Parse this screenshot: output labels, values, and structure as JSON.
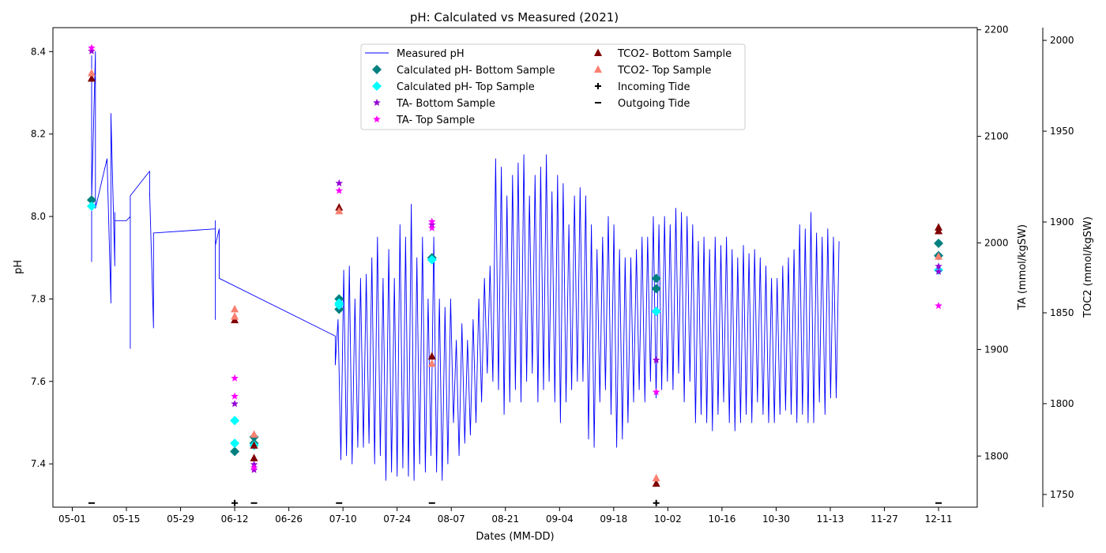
{
  "chart_data": {
    "type": "line",
    "title": "pH: Calculated vs Measured (2021)",
    "xlabel": "Dates (MM-DD)",
    "ylabel": "pH",
    "y2label": "TA (mmol/kgSW)",
    "y3label": "TOC2 (mmol/kgSW)",
    "x_axis_type": "date",
    "xlim": [
      "2021-04-26",
      "2021-12-21"
    ],
    "ylim": [
      7.295,
      8.458
    ],
    "y2lim": [
      1752,
      2202
    ],
    "y3lim": [
      1743,
      2007
    ],
    "x_ticks": [
      "2021-05-01",
      "2021-05-15",
      "2021-05-29",
      "2021-06-12",
      "2021-06-26",
      "2021-07-10",
      "2021-07-24",
      "2021-08-07",
      "2021-08-21",
      "2021-09-04",
      "2021-09-18",
      "2021-10-02",
      "2021-10-16",
      "2021-10-30",
      "2021-11-13",
      "2021-11-27",
      "2021-12-11"
    ],
    "x_tick_labels": [
      "05-01",
      "05-15",
      "05-29",
      "06-12",
      "06-26",
      "07-10",
      "07-24",
      "08-07",
      "08-21",
      "09-04",
      "09-18",
      "10-02",
      "10-16",
      "10-30",
      "11-13",
      "11-27",
      "12-11"
    ],
    "y_ticks": [
      "7.4",
      "7.6",
      "7.8",
      "8.0",
      "8.2",
      "8.4"
    ],
    "y2_ticks": [
      "1800",
      "1900",
      "2000",
      "2100",
      "2200"
    ],
    "y3_ticks": [
      "1750",
      "1800",
      "1850",
      "1900",
      "1950",
      "2000"
    ],
    "grid": false,
    "legend_position": "top-center",
    "legend": [
      {
        "label": "Measured pH",
        "marker": "line",
        "color": "#0000ff"
      },
      {
        "label": "Calculated pH- Bottom Sample",
        "marker": "diamond",
        "color": "#008080"
      },
      {
        "label": "Calculated pH- Top Sample",
        "marker": "diamond",
        "color": "#00ffff"
      },
      {
        "label": "TA- Bottom Sample",
        "marker": "star",
        "color": "#9400d3"
      },
      {
        "label": "TA- Top Sample",
        "marker": "star",
        "color": "#ff00ff"
      },
      {
        "label": "TCO2- Bottom Sample",
        "marker": "triangle",
        "color": "#800000"
      },
      {
        "label": "TCO2- Top Sample",
        "marker": "triangle",
        "color": "#fa8072"
      },
      {
        "label": "Incoming Tide",
        "marker": "plus",
        "color": "#000000"
      },
      {
        "label": "Outgoing Tide",
        "marker": "minus",
        "color": "#000000"
      }
    ],
    "measured_ph": {
      "sparse": [
        [
          "2021-05-06",
          7.89
        ],
        [
          "2021-05-06",
          8.02
        ],
        [
          "2021-05-06",
          8.28
        ],
        [
          "2021-05-06",
          8.39
        ],
        [
          "2021-05-06",
          8.05
        ],
        [
          "2021-05-06",
          8.0
        ],
        [
          "2021-05-06",
          8.04
        ],
        [
          "2021-05-07",
          8.4
        ],
        [
          "2021-05-07",
          8.38
        ],
        [
          "2021-05-07",
          8.07
        ],
        [
          "2021-05-07",
          8.02
        ],
        [
          "2021-05-10",
          8.14
        ],
        [
          "2021-05-11",
          7.79
        ],
        [
          "2021-05-11",
          8.11
        ],
        [
          "2021-05-11",
          8.17
        ],
        [
          "2021-05-11",
          7.96
        ],
        [
          "2021-05-11",
          8.25
        ],
        [
          "2021-05-12",
          7.88
        ],
        [
          "2021-05-12",
          8.01
        ],
        [
          "2021-05-12",
          7.99
        ],
        [
          "2021-05-15",
          7.99
        ],
        [
          "2021-05-16",
          8.0
        ],
        [
          "2021-05-16",
          7.68
        ],
        [
          "2021-05-16",
          8.0
        ],
        [
          "2021-05-16",
          8.05
        ],
        [
          "2021-05-21",
          8.11
        ],
        [
          "2021-05-21",
          8.05
        ],
        [
          "2021-05-21",
          8.06
        ],
        [
          "2021-05-22",
          7.73
        ],
        [
          "2021-05-22",
          7.96
        ],
        [
          "2021-06-07",
          7.97
        ],
        [
          "2021-06-07",
          7.75
        ],
        [
          "2021-06-07",
          7.99
        ],
        [
          "2021-06-07",
          7.93
        ],
        [
          "2021-06-08",
          7.97
        ],
        [
          "2021-06-08",
          7.86
        ],
        [
          "2021-06-08",
          7.88
        ],
        [
          "2021-06-08",
          7.85
        ],
        [
          "2021-07-08",
          7.71
        ]
      ],
      "dense_start": "2021-07-08",
      "dense_end": "2021-11-16",
      "dense_peaks": [
        7.75,
        7.87,
        7.88,
        7.8,
        7.85,
        7.86,
        7.9,
        7.95,
        7.85,
        7.92,
        7.85,
        7.98,
        7.95,
        8.03,
        7.9,
        7.95,
        7.8,
        7.95,
        7.8,
        7.78,
        7.8,
        7.7,
        7.74,
        7.7,
        7.75,
        7.8,
        7.85,
        7.88,
        8.14,
        8.12,
        8.05,
        8.1,
        8.13,
        8.15,
        8.05,
        8.1,
        8.12,
        8.15,
        8.06,
        8.1,
        8.08,
        7.98,
        8.05,
        8.07,
        8.05,
        7.98,
        7.92,
        7.95,
        8.0,
        7.98,
        7.92,
        7.9,
        7.9,
        7.92,
        7.95,
        7.95,
        8.0,
        7.98,
        8.0,
        7.98,
        8.02,
        8.01,
        8.0,
        7.98,
        7.94,
        7.95,
        7.92,
        7.95,
        7.93,
        7.95,
        7.92,
        7.9,
        7.93,
        7.91,
        7.92,
        7.9,
        7.88,
        7.85,
        7.85,
        7.88,
        7.9,
        7.92,
        7.98,
        7.97,
        8.01,
        7.96,
        7.95,
        7.97,
        7.95,
        7.94
      ],
      "dense_troughs": [
        7.64,
        7.41,
        7.42,
        7.4,
        7.44,
        7.44,
        7.45,
        7.4,
        7.42,
        7.36,
        7.38,
        7.37,
        7.39,
        7.37,
        7.36,
        7.4,
        7.38,
        7.42,
        7.38,
        7.36,
        7.4,
        7.5,
        7.42,
        7.45,
        7.47,
        7.5,
        7.55,
        7.62,
        7.6,
        7.58,
        7.52,
        7.55,
        7.58,
        7.55,
        7.6,
        7.62,
        7.55,
        7.58,
        7.6,
        7.55,
        7.5,
        7.55,
        7.58,
        7.6,
        7.6,
        7.46,
        7.44,
        7.55,
        7.58,
        7.52,
        7.44,
        7.46,
        7.5,
        7.55,
        7.58,
        7.55,
        7.6,
        7.56,
        7.58,
        7.6,
        7.58,
        7.62,
        7.55,
        7.6,
        7.5,
        7.52,
        7.5,
        7.48,
        7.52,
        7.55,
        7.5,
        7.48,
        7.5,
        7.52,
        7.5,
        7.55,
        7.52,
        7.5,
        7.5,
        7.52,
        7.53,
        7.52,
        7.5,
        7.52,
        7.5,
        7.5,
        7.55,
        7.52,
        7.56,
        7.56
      ]
    },
    "series": [
      {
        "name": "Calculated pH- Bottom Sample",
        "marker": "diamond",
        "color": "#008080",
        "axis": "pH",
        "points": [
          [
            "2021-05-06",
            8.04
          ],
          [
            "2021-06-12",
            7.43
          ],
          [
            "2021-06-17",
            7.465
          ],
          [
            "2021-06-17",
            7.45
          ],
          [
            "2021-07-09",
            7.8
          ],
          [
            "2021-07-09",
            7.775
          ],
          [
            "2021-08-02",
            7.9
          ],
          [
            "2021-09-29",
            7.85
          ],
          [
            "2021-09-29",
            7.825
          ],
          [
            "2021-12-11",
            7.935
          ],
          [
            "2021-12-11",
            7.905
          ]
        ]
      },
      {
        "name": "Calculated pH- Top Sample",
        "marker": "diamond",
        "color": "#00ffff",
        "axis": "pH",
        "points": [
          [
            "2021-05-06",
            8.025
          ],
          [
            "2021-06-12",
            7.505
          ],
          [
            "2021-06-12",
            7.45
          ],
          [
            "2021-06-17",
            7.445
          ],
          [
            "2021-07-09",
            7.79
          ],
          [
            "2021-07-09",
            7.785
          ],
          [
            "2021-08-02",
            7.895
          ],
          [
            "2021-09-29",
            7.77
          ],
          [
            "2021-12-11",
            7.87
          ]
        ]
      },
      {
        "name": "TA- Bottom Sample",
        "marker": "star",
        "color": "#9400d3",
        "axis": "TA",
        "points": [
          [
            "2021-05-06",
            2180
          ],
          [
            "2021-06-12",
            1849
          ],
          [
            "2021-06-17",
            1792
          ],
          [
            "2021-06-17",
            1787
          ],
          [
            "2021-07-09",
            2056
          ],
          [
            "2021-08-02",
            2017
          ],
          [
            "2021-09-29",
            1890
          ],
          [
            "2021-12-11",
            1978
          ],
          [
            "2021-12-11",
            1973
          ]
        ]
      },
      {
        "name": "TA- Top Sample",
        "marker": "star",
        "color": "#ff00ff",
        "axis": "TA",
        "points": [
          [
            "2021-05-06",
            2183
          ],
          [
            "2021-06-12",
            1873
          ],
          [
            "2021-06-12",
            1856
          ],
          [
            "2021-06-17",
            1789
          ],
          [
            "2021-07-09",
            2049
          ],
          [
            "2021-08-02",
            2020
          ],
          [
            "2021-08-02",
            2014
          ],
          [
            "2021-09-29",
            1860
          ],
          [
            "2021-12-11",
            1941
          ]
        ]
      },
      {
        "name": "TCO2- Bottom Sample",
        "marker": "triangle",
        "color": "#800000",
        "axis": "TOC2",
        "points": [
          [
            "2021-05-06",
            1979
          ],
          [
            "2021-06-12",
            1846
          ],
          [
            "2021-06-17",
            1777
          ],
          [
            "2021-06-17",
            1770
          ],
          [
            "2021-07-09",
            1908
          ],
          [
            "2021-08-02",
            1826
          ],
          [
            "2021-09-29",
            1756
          ],
          [
            "2021-12-11",
            1897
          ],
          [
            "2021-12-11",
            1895
          ]
        ]
      },
      {
        "name": "TCO2- Top Sample",
        "marker": "triangle",
        "color": "#fa8072",
        "axis": "TOC2",
        "points": [
          [
            "2021-05-06",
            1982
          ],
          [
            "2021-06-12",
            1852
          ],
          [
            "2021-06-12",
            1848
          ],
          [
            "2021-06-17",
            1783
          ],
          [
            "2021-07-09",
            1906
          ],
          [
            "2021-08-02",
            1822
          ],
          [
            "2021-09-29",
            1759
          ],
          [
            "2021-12-11",
            1881
          ]
        ]
      },
      {
        "name": "Incoming Tide",
        "marker": "plus",
        "color": "#000000",
        "axis": "pH",
        "points": [
          [
            "2021-06-12",
            7.305
          ],
          [
            "2021-09-29",
            7.305
          ]
        ]
      },
      {
        "name": "Outgoing Tide",
        "marker": "minus",
        "color": "#000000",
        "axis": "pH",
        "points": [
          [
            "2021-05-06",
            7.305
          ],
          [
            "2021-06-17",
            7.305
          ],
          [
            "2021-07-09",
            7.305
          ],
          [
            "2021-08-02",
            7.305
          ],
          [
            "2021-12-11",
            7.305
          ]
        ]
      }
    ]
  }
}
